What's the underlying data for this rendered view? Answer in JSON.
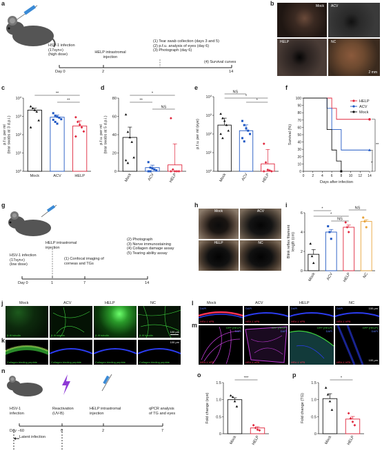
{
  "panel_labels": {
    "a": "a",
    "b": "b",
    "c": "c",
    "d": "d",
    "e": "e",
    "f": "f",
    "g": "g",
    "h": "h",
    "i": "i",
    "j": "j",
    "k": "k",
    "l": "l",
    "m": "m",
    "n": "n",
    "o": "o",
    "p": "p"
  },
  "colors": {
    "mock": "#111111",
    "acv": "#1f57c3",
    "help": "#e0263c",
    "nc": "#e8a33a",
    "micro_green": "#3ed13e",
    "micro_blue": "#2b3cf0",
    "micro_red": "#ff3355",
    "micro_magenta": "#c03bd8"
  },
  "timeline_a": {
    "infection_l1": "HSV-1 infection",
    "infection_l2": "(17syn+)",
    "infection_l3": "(high dose)",
    "help": "HELP intrastromal injection",
    "step1": "(1) Tear swab collection (days 3 and 5)",
    "step2": "(2) p.f.u. analysis of eyes (day 6)",
    "step3": "(3) Photograph (day 6)",
    "step4": "(4) Survival curves",
    "day0": "Day 0",
    "d2": "2",
    "d14": "14"
  },
  "photos_b": {
    "mock": "Mock",
    "acv": "ACV",
    "help": "HELP",
    "nc": "NC",
    "scale": "2 mm"
  },
  "timeline_g": {
    "help_l1": "HELP intrastromal",
    "help_l2": "injection",
    "infection_l1": "HSV-1 infection",
    "infection_l2": "(17syn+)",
    "infection_l3": "(low dose)",
    "step1_l1": "(1) Confocal imaging of",
    "step1_l2": "corneas and TGs",
    "step2": "(2) Photograph",
    "step3": "(3) Nerve immunostaining",
    "step4": "(4) Collagen damage assay",
    "step5": "(5) Tearing ability assay",
    "day0": "Day 0",
    "d1": "1",
    "d7": "7",
    "d14": "14"
  },
  "photos_h": {
    "mock": "Mock",
    "acv": "ACV",
    "help": "HELP",
    "nc": "NC"
  },
  "micro_j": {
    "mock": "Mock",
    "acv": "ACV",
    "help": "HELP",
    "nc": "NC",
    "stain": "β-III tubulin",
    "scale": "100 μm"
  },
  "micro_k": {
    "stain": "Collagen binding peptide",
    "scale": "100 μm"
  },
  "micro_l": {
    "mock": "Mock",
    "acv": "ACV",
    "help": "HELP",
    "nc": "NC",
    "dapi": "DAPI",
    "vp": "HSV-1 VP5",
    "scale": "100 μm"
  },
  "micro_m": {
    "gfp": "GFP (HELP)",
    "dapi": "DAPI",
    "vp": "HSV-1 VP5",
    "scale": "100 μm"
  },
  "timeline_n": {
    "infection_l1": "HSV-1",
    "infection_l2": "infection",
    "react_l1": "Reactivation",
    "react_l2": "(UV-B)",
    "help_l1": "HELP intrastromal",
    "help_l2": "injection",
    "qpcr_l1": "qPCR analysis",
    "qpcr_l2": "of TG and eyes",
    "day": "Day −60",
    "d0": "0",
    "d2": "2",
    "d7": "7",
    "latent": "Latent infection"
  },
  "chart_data": [
    {
      "id": "c",
      "type": "bar",
      "categories": [
        "Mock",
        "ACV",
        "HELP"
      ],
      "ylabel_l1": "p.f.u. per ml",
      "ylabel_l2": "(tear swabs at 3 d.p.i.)",
      "yscale": "log",
      "ylim": [
        1,
        10000
      ],
      "yticks": [
        "10^0",
        "10^1",
        "10^2",
        "10^3",
        "10^4"
      ],
      "values": [
        2200,
        900,
        300
      ],
      "sig": [
        [
          "Mock",
          "HELP",
          "**"
        ],
        [
          "ACV",
          "HELP",
          "**"
        ]
      ],
      "points": [
        [
          3500,
          2800,
          2200,
          1800,
          600,
          250
        ],
        [
          1500,
          1100,
          950,
          850,
          700,
          650,
          500,
          400
        ],
        [
          900,
          500,
          350,
          250,
          150,
          80
        ]
      ]
    },
    {
      "id": "d",
      "type": "bar",
      "categories": [
        "Mock",
        "ACV",
        "HELP"
      ],
      "ylabel_l1": "p.f.u. per ml",
      "ylabel_l2": "(tear swabs at 5 d.p.i.)",
      "ylim": [
        0,
        80
      ],
      "yticks": [
        "0",
        "20",
        "40",
        "60",
        "80"
      ],
      "values": [
        37,
        4,
        7
      ],
      "sig": [
        [
          "Mock",
          "HELP",
          "*"
        ],
        [
          "Mock",
          "ACV",
          "**"
        ],
        [
          "ACV",
          "HELP",
          "NS"
        ]
      ],
      "points": [
        [
          62,
          43,
          37,
          32,
          15,
          12,
          9
        ],
        [
          10,
          4,
          3,
          2,
          1,
          0,
          0
        ],
        [
          58,
          2,
          0,
          0,
          0,
          0
        ]
      ]
    },
    {
      "id": "e",
      "type": "bar",
      "categories": [
        "Mock",
        "ACV",
        "HELP"
      ],
      "ylabel": "p.f.u. per ml (eye)",
      "yscale": "log",
      "ylim": [
        1,
        10000
      ],
      "yticks": [
        "10^0",
        "10^1",
        "10^2",
        "10^3",
        "10^4"
      ],
      "values": [
        300,
        150,
        2.5
      ],
      "sig": [
        [
          "Mock",
          "ACV",
          "NS"
        ],
        [
          "Mock",
          "HELP",
          "*"
        ],
        [
          "ACV",
          "HELP",
          "*"
        ]
      ],
      "points": [
        [
          1200,
          700,
          500,
          300,
          150,
          100,
          60
        ],
        [
          500,
          300,
          200,
          150,
          100,
          60,
          40
        ],
        [
          30,
          3,
          1.2,
          1.1,
          1,
          1
        ]
      ]
    },
    {
      "id": "f",
      "type": "line",
      "xlabel": "Days after infection",
      "ylabel": "Survival (%)",
      "xlim": [
        0,
        14
      ],
      "xticks": [
        "0",
        "2",
        "4",
        "6",
        "8",
        "10",
        "12",
        "14"
      ],
      "ylim": [
        0,
        100
      ],
      "yticks": [
        "0",
        "10",
        "20",
        "30",
        "40",
        "50",
        "60",
        "70",
        "80",
        "90",
        "100"
      ],
      "series": [
        {
          "name": "HELP",
          "x": [
            0,
            5,
            6,
            7,
            14
          ],
          "y": [
            100,
            100,
            86,
            71,
            71
          ]
        },
        {
          "name": "ACV",
          "x": [
            0,
            5,
            6,
            8,
            14
          ],
          "y": [
            100,
            86,
            57,
            29,
            29
          ]
        },
        {
          "name": "Mock",
          "x": [
            0,
            5,
            6,
            7,
            8
          ],
          "y": [
            100,
            57,
            29,
            14,
            0
          ]
        }
      ],
      "sig": [
        "**",
        "*"
      ]
    },
    {
      "id": "i",
      "type": "bar",
      "categories": [
        "Mock",
        "ACV",
        "HELP",
        "NC"
      ],
      "ylabel_l1": "Blink reflex filament",
      "ylabel_l2": "length (cm)",
      "ylim": [
        0,
        6
      ],
      "yticks": [
        "0",
        "2",
        "4",
        "6"
      ],
      "values": [
        1.7,
        4.0,
        4.5,
        5.1
      ],
      "sig": [
        [
          "Mock",
          "ACV",
          "*"
        ],
        [
          "Mock",
          "HELP",
          "*"
        ],
        [
          "ACV",
          "HELP",
          "NS"
        ],
        [
          "HELP",
          "NC",
          "NS"
        ]
      ],
      "points": [
        [
          2.8,
          1.5,
          0.8
        ],
        [
          4.6,
          4.0,
          3.3
        ],
        [
          5.0,
          4.5,
          4.0
        ],
        [
          5.5,
          5.1,
          4.5
        ]
      ]
    },
    {
      "id": "o",
      "type": "bar",
      "categories": [
        "Mock",
        "HELP"
      ],
      "ylabel": "Fold change (eye)",
      "ylim": [
        0,
        1.5
      ],
      "yticks": [
        "0",
        "0.5",
        "1.0",
        "1.5"
      ],
      "values": [
        1.0,
        0.17
      ],
      "sig": [
        [
          "Mock",
          "HELP",
          "***"
        ]
      ],
      "points": [
        [
          1.12,
          1.08,
          0.95,
          0.8
        ],
        [
          0.25,
          0.17,
          0.12,
          0.1
        ]
      ]
    },
    {
      "id": "p",
      "type": "bar",
      "categories": [
        "Mock",
        "HELP"
      ],
      "ylabel": "Fold change (TG)",
      "ylim": [
        0,
        1.5
      ],
      "yticks": [
        "0",
        "0.5",
        "1.0",
        "1.5"
      ],
      "values": [
        1.03,
        0.43
      ],
      "sig": [
        [
          "Mock",
          "HELP",
          "*"
        ]
      ],
      "points": [
        [
          1.35,
          1.15,
          0.95,
          0.7
        ],
        [
          0.6,
          0.45,
          0.35,
          0.25
        ]
      ]
    }
  ]
}
